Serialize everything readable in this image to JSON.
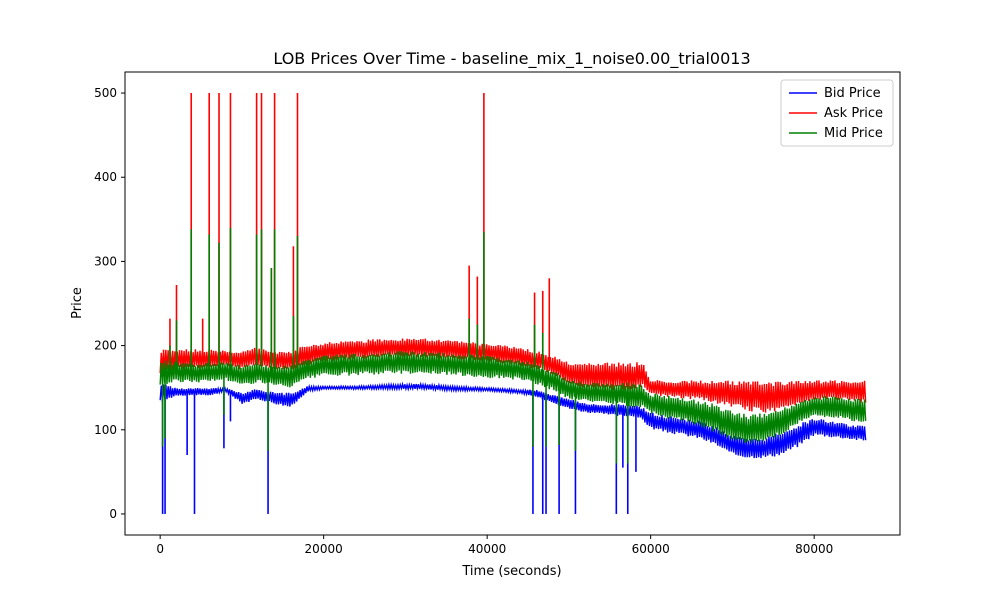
{
  "chart_data": {
    "type": "line",
    "title": "LOB Prices Over Time - baseline_mix_1_noise0.00_trial0013",
    "xlabel": "Time (seconds)",
    "ylabel": "Price",
    "xlim": [
      -4300,
      90500
    ],
    "ylim": [
      -25,
      525
    ],
    "x_ticks": [
      0,
      20000,
      40000,
      60000,
      80000
    ],
    "x_tick_labels": [
      "0",
      "20000",
      "40000",
      "60000",
      "80000"
    ],
    "y_ticks": [
      0,
      100,
      200,
      300,
      400,
      500
    ],
    "y_tick_labels": [
      "0",
      "100",
      "200",
      "300",
      "400",
      "500"
    ],
    "grid": false,
    "legend_position": "top-right",
    "series": [
      {
        "name": "Bid Price",
        "color": "#0000ff",
        "x": [
          0,
          2000,
          4000,
          6000,
          8000,
          10000,
          12000,
          14000,
          16000,
          18000,
          20000,
          24000,
          28000,
          32000,
          36000,
          40000,
          44000,
          46000,
          48000,
          50000,
          52000,
          54000,
          56000,
          58000,
          59000,
          60000,
          62000,
          64000,
          66000,
          68000,
          70000,
          72000,
          74000,
          76000,
          78000,
          80000,
          82000,
          84000,
          86300
        ],
        "low": [
          130,
          140,
          140,
          140,
          145,
          130,
          135,
          130,
          125,
          145,
          148,
          148,
          148,
          148,
          146,
          146,
          143,
          138,
          132,
          124,
          120,
          118,
          115,
          115,
          110,
          100,
          95,
          92,
          88,
          80,
          68,
          65,
          65,
          68,
          78,
          92,
          90,
          88,
          85
        ],
        "high": [
          158,
          150,
          150,
          150,
          150,
          145,
          150,
          145,
          145,
          152,
          152,
          152,
          154,
          155,
          152,
          150,
          148,
          148,
          142,
          138,
          132,
          130,
          132,
          130,
          128,
          122,
          118,
          115,
          112,
          105,
          95,
          90,
          92,
          100,
          108,
          115,
          112,
          108,
          105
        ],
        "spikes": [
          [
            300,
            0
          ],
          [
            600,
            0
          ],
          [
            4200,
            0
          ],
          [
            3300,
            70
          ],
          [
            7800,
            78
          ],
          [
            8600,
            110
          ],
          [
            13200,
            0
          ],
          [
            45600,
            0
          ],
          [
            46800,
            0
          ],
          [
            47200,
            0
          ],
          [
            48800,
            0
          ],
          [
            50800,
            0
          ],
          [
            55800,
            0
          ],
          [
            56600,
            55
          ],
          [
            57200,
            0
          ],
          [
            58200,
            50
          ]
        ]
      },
      {
        "name": "Ask Price",
        "color": "#ff0000",
        "x": [
          0,
          2000,
          4000,
          6000,
          8000,
          10000,
          12000,
          14000,
          16000,
          18000,
          20000,
          24000,
          28000,
          32000,
          36000,
          40000,
          44000,
          46000,
          48000,
          50000,
          52000,
          54000,
          56000,
          58000,
          59000,
          60000,
          62000,
          64000,
          66000,
          68000,
          70000,
          72000,
          74000,
          76000,
          78000,
          80000,
          82000,
          84000,
          86300
        ],
        "low": [
          165,
          170,
          172,
          172,
          175,
          170,
          175,
          170,
          170,
          175,
          180,
          182,
          185,
          185,
          182,
          180,
          175,
          170,
          165,
          150,
          148,
          145,
          145,
          145,
          150,
          140,
          138,
          136,
          134,
          130,
          125,
          120,
          118,
          120,
          128,
          134,
          135,
          133,
          130
        ],
        "high": [
          197,
          197,
          197,
          197,
          195,
          195,
          200,
          195,
          195,
          203,
          205,
          208,
          210,
          210,
          207,
          204,
          200,
          195,
          190,
          182,
          182,
          182,
          182,
          182,
          182,
          160,
          160,
          160,
          160,
          160,
          160,
          160,
          160,
          160,
          160,
          160,
          160,
          160,
          160
        ],
        "spikes": [
          [
            1200,
            232
          ],
          [
            2000,
            272
          ],
          [
            3800,
            500
          ],
          [
            5200,
            232
          ],
          [
            6000,
            500
          ],
          [
            7200,
            500
          ],
          [
            8600,
            500
          ],
          [
            11800,
            500
          ],
          [
            12400,
            500
          ],
          [
            13600,
            292
          ],
          [
            14000,
            500
          ],
          [
            16300,
            318
          ],
          [
            16800,
            500
          ],
          [
            37800,
            295
          ],
          [
            38800,
            282
          ],
          [
            39600,
            500
          ],
          [
            45800,
            263
          ],
          [
            46800,
            265
          ],
          [
            47600,
            280
          ]
        ]
      },
      {
        "name": "Mid Price",
        "color": "#008000",
        "x": [
          0,
          2000,
          4000,
          6000,
          8000,
          10000,
          12000,
          14000,
          16000,
          18000,
          20000,
          24000,
          28000,
          32000,
          36000,
          40000,
          44000,
          46000,
          48000,
          50000,
          52000,
          54000,
          56000,
          58000,
          59000,
          60000,
          62000,
          64000,
          66000,
          68000,
          70000,
          72000,
          74000,
          76000,
          78000,
          80000,
          82000,
          84000,
          86300
        ],
        "low": [
          150,
          155,
          155,
          155,
          158,
          150,
          155,
          150,
          148,
          158,
          162,
          163,
          165,
          165,
          163,
          160,
          158,
          152,
          145,
          135,
          132,
          130,
          128,
          125,
          125,
          118,
          112,
          108,
          102,
          95,
          85,
          80,
          82,
          92,
          105,
          115,
          112,
          110,
          105
        ],
        "high": [
          185,
          182,
          180,
          182,
          182,
          178,
          180,
          178,
          178,
          185,
          190,
          192,
          195,
          195,
          192,
          190,
          185,
          180,
          172,
          162,
          158,
          158,
          158,
          158,
          155,
          145,
          143,
          140,
          137,
          132,
          125,
          120,
          122,
          128,
          135,
          140,
          142,
          140,
          138
        ],
        "spikes": [
          [
            300,
            80
          ],
          [
            600,
            90
          ],
          [
            1200,
            200
          ],
          [
            2000,
            230
          ],
          [
            3800,
            338
          ],
          [
            6000,
            332
          ],
          [
            7200,
            322
          ],
          [
            7800,
            118
          ],
          [
            8600,
            340
          ],
          [
            11800,
            332
          ],
          [
            12400,
            338
          ],
          [
            13200,
            75
          ],
          [
            13600,
            292
          ],
          [
            14000,
            338
          ],
          [
            16300,
            235
          ],
          [
            16800,
            330
          ],
          [
            37800,
            232
          ],
          [
            38800,
            225
          ],
          [
            39600,
            335
          ],
          [
            45600,
            80
          ],
          [
            45800,
            225
          ],
          [
            46800,
            215
          ],
          [
            47200,
            80
          ],
          [
            48800,
            82
          ],
          [
            50800,
            75
          ],
          [
            55800,
            60
          ],
          [
            57200,
            60
          ]
        ]
      }
    ]
  }
}
